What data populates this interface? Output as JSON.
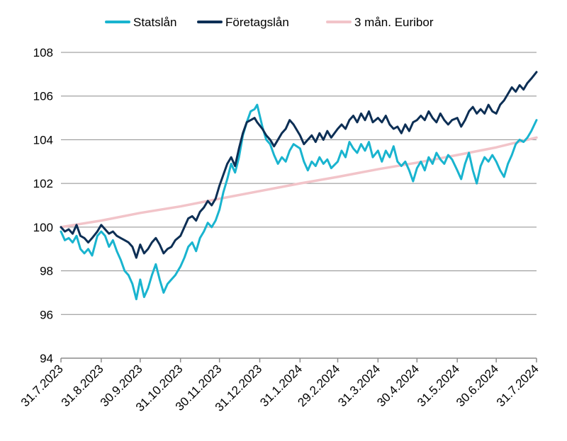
{
  "chart_data": {
    "type": "line",
    "xlabel": "",
    "ylabel": "",
    "ylim": [
      94,
      108
    ],
    "yticks": [
      "94",
      "96",
      "98",
      "100",
      "102",
      "104",
      "106",
      "108"
    ],
    "x_range": [
      "2023-07-31",
      "2024-07-31"
    ],
    "xticks": [
      {
        "date": "2023-07-31",
        "label": "31.7.2023"
      },
      {
        "date": "2023-08-31",
        "label": "31.8.2023"
      },
      {
        "date": "2023-09-30",
        "label": "30.9.2023"
      },
      {
        "date": "2023-10-31",
        "label": "31.10.2023"
      },
      {
        "date": "2023-11-30",
        "label": "30.11.2023"
      },
      {
        "date": "2023-12-31",
        "label": "31.12.2023"
      },
      {
        "date": "2024-01-31",
        "label": "31.1.2024"
      },
      {
        "date": "2024-02-29",
        "label": "29.2.2024"
      },
      {
        "date": "2024-03-31",
        "label": "31.3.2024"
      },
      {
        "date": "2024-04-30",
        "label": "30.4.2024"
      },
      {
        "date": "2024-05-31",
        "label": "31.5.2024"
      },
      {
        "date": "2024-06-30",
        "label": "30.6.2024"
      },
      {
        "date": "2024-07-31",
        "label": "31.7.2024"
      }
    ],
    "grid": true,
    "legend_position": "top-center",
    "series": [
      {
        "name": "Statslån",
        "color": "#19b4cf",
        "points": [
          [
            "2023-07-31",
            99.8
          ],
          [
            "2023-08-03",
            99.4
          ],
          [
            "2023-08-06",
            99.5
          ],
          [
            "2023-08-09",
            99.3
          ],
          [
            "2023-08-12",
            99.6
          ],
          [
            "2023-08-15",
            99.0
          ],
          [
            "2023-08-18",
            98.8
          ],
          [
            "2023-08-21",
            99.0
          ],
          [
            "2023-08-24",
            98.7
          ],
          [
            "2023-08-28",
            99.6
          ],
          [
            "2023-08-31",
            99.8
          ],
          [
            "2023-09-03",
            99.6
          ],
          [
            "2023-09-06",
            99.1
          ],
          [
            "2023-09-09",
            99.4
          ],
          [
            "2023-09-12",
            98.9
          ],
          [
            "2023-09-15",
            98.5
          ],
          [
            "2023-09-18",
            98.0
          ],
          [
            "2023-09-21",
            97.8
          ],
          [
            "2023-09-24",
            97.4
          ],
          [
            "2023-09-27",
            96.7
          ],
          [
            "2023-09-30",
            97.6
          ],
          [
            "2023-10-03",
            96.8
          ],
          [
            "2023-10-06",
            97.2
          ],
          [
            "2023-10-09",
            97.8
          ],
          [
            "2023-10-12",
            98.3
          ],
          [
            "2023-10-15",
            97.6
          ],
          [
            "2023-10-18",
            97.0
          ],
          [
            "2023-10-21",
            97.4
          ],
          [
            "2023-10-24",
            97.6
          ],
          [
            "2023-10-27",
            97.8
          ],
          [
            "2023-10-31",
            98.2
          ],
          [
            "2023-11-03",
            98.6
          ],
          [
            "2023-11-06",
            99.1
          ],
          [
            "2023-11-09",
            99.3
          ],
          [
            "2023-11-12",
            98.9
          ],
          [
            "2023-11-15",
            99.5
          ],
          [
            "2023-11-18",
            99.8
          ],
          [
            "2023-11-21",
            100.2
          ],
          [
            "2023-11-24",
            100.0
          ],
          [
            "2023-11-27",
            100.3
          ],
          [
            "2023-11-30",
            100.8
          ],
          [
            "2023-12-03",
            101.6
          ],
          [
            "2023-12-06",
            102.2
          ],
          [
            "2023-12-09",
            102.9
          ],
          [
            "2023-12-12",
            102.5
          ],
          [
            "2023-12-15",
            103.2
          ],
          [
            "2023-12-18",
            104.2
          ],
          [
            "2023-12-21",
            104.8
          ],
          [
            "2023-12-24",
            105.3
          ],
          [
            "2023-12-27",
            105.4
          ],
          [
            "2023-12-29",
            105.6
          ],
          [
            "2024-01-02",
            104.6
          ],
          [
            "2024-01-05",
            104.0
          ],
          [
            "2024-01-08",
            103.8
          ],
          [
            "2024-01-11",
            103.3
          ],
          [
            "2024-01-14",
            102.9
          ],
          [
            "2024-01-17",
            103.2
          ],
          [
            "2024-01-20",
            103.0
          ],
          [
            "2024-01-23",
            103.5
          ],
          [
            "2024-01-26",
            103.8
          ],
          [
            "2024-01-31",
            103.6
          ],
          [
            "2024-02-03",
            103.0
          ],
          [
            "2024-02-06",
            102.6
          ],
          [
            "2024-02-09",
            103.0
          ],
          [
            "2024-02-12",
            102.8
          ],
          [
            "2024-02-15",
            103.2
          ],
          [
            "2024-02-18",
            102.9
          ],
          [
            "2024-02-21",
            103.1
          ],
          [
            "2024-02-24",
            102.7
          ],
          [
            "2024-02-29",
            103.0
          ],
          [
            "2024-03-03",
            103.5
          ],
          [
            "2024-03-06",
            103.2
          ],
          [
            "2024-03-09",
            103.9
          ],
          [
            "2024-03-12",
            103.6
          ],
          [
            "2024-03-15",
            103.4
          ],
          [
            "2024-03-18",
            103.8
          ],
          [
            "2024-03-21",
            103.5
          ],
          [
            "2024-03-24",
            103.9
          ],
          [
            "2024-03-27",
            103.2
          ],
          [
            "2024-03-31",
            103.5
          ],
          [
            "2024-04-03",
            103.0
          ],
          [
            "2024-04-06",
            103.5
          ],
          [
            "2024-04-09",
            103.2
          ],
          [
            "2024-04-12",
            103.7
          ],
          [
            "2024-04-15",
            103.0
          ],
          [
            "2024-04-18",
            102.8
          ],
          [
            "2024-04-21",
            103.0
          ],
          [
            "2024-04-24",
            102.6
          ],
          [
            "2024-04-27",
            102.1
          ],
          [
            "2024-04-30",
            102.7
          ],
          [
            "2024-05-03",
            103.0
          ],
          [
            "2024-05-06",
            102.6
          ],
          [
            "2024-05-09",
            103.2
          ],
          [
            "2024-05-12",
            102.9
          ],
          [
            "2024-05-15",
            103.4
          ],
          [
            "2024-05-18",
            103.1
          ],
          [
            "2024-05-21",
            102.9
          ],
          [
            "2024-05-24",
            103.3
          ],
          [
            "2024-05-27",
            103.1
          ],
          [
            "2024-05-31",
            102.6
          ],
          [
            "2024-06-03",
            102.2
          ],
          [
            "2024-06-06",
            102.9
          ],
          [
            "2024-06-09",
            103.4
          ],
          [
            "2024-06-12",
            102.6
          ],
          [
            "2024-06-15",
            102.0
          ],
          [
            "2024-06-18",
            102.8
          ],
          [
            "2024-06-21",
            103.2
          ],
          [
            "2024-06-24",
            103.0
          ],
          [
            "2024-06-27",
            103.3
          ],
          [
            "2024-06-30",
            103.0
          ],
          [
            "2024-07-03",
            102.6
          ],
          [
            "2024-07-06",
            102.3
          ],
          [
            "2024-07-09",
            102.9
          ],
          [
            "2024-07-12",
            103.3
          ],
          [
            "2024-07-15",
            103.8
          ],
          [
            "2024-07-18",
            104.0
          ],
          [
            "2024-07-21",
            103.9
          ],
          [
            "2024-07-24",
            104.1
          ],
          [
            "2024-07-27",
            104.4
          ],
          [
            "2024-07-31",
            104.9
          ]
        ]
      },
      {
        "name": "Företagslån",
        "color": "#0d2f55",
        "points": [
          [
            "2023-07-31",
            100.0
          ],
          [
            "2023-08-03",
            99.8
          ],
          [
            "2023-08-06",
            99.9
          ],
          [
            "2023-08-09",
            99.7
          ],
          [
            "2023-08-12",
            100.1
          ],
          [
            "2023-08-15",
            99.6
          ],
          [
            "2023-08-18",
            99.5
          ],
          [
            "2023-08-21",
            99.3
          ],
          [
            "2023-08-24",
            99.5
          ],
          [
            "2023-08-28",
            99.8
          ],
          [
            "2023-08-31",
            100.1
          ],
          [
            "2023-09-03",
            99.9
          ],
          [
            "2023-09-06",
            99.7
          ],
          [
            "2023-09-09",
            99.8
          ],
          [
            "2023-09-12",
            99.6
          ],
          [
            "2023-09-15",
            99.5
          ],
          [
            "2023-09-18",
            99.4
          ],
          [
            "2023-09-21",
            99.3
          ],
          [
            "2023-09-24",
            99.1
          ],
          [
            "2023-09-27",
            98.6
          ],
          [
            "2023-09-30",
            99.2
          ],
          [
            "2023-10-03",
            98.8
          ],
          [
            "2023-10-06",
            99.0
          ],
          [
            "2023-10-09",
            99.3
          ],
          [
            "2023-10-12",
            99.5
          ],
          [
            "2023-10-15",
            99.2
          ],
          [
            "2023-10-18",
            98.8
          ],
          [
            "2023-10-21",
            99.0
          ],
          [
            "2023-10-24",
            99.1
          ],
          [
            "2023-10-27",
            99.4
          ],
          [
            "2023-10-31",
            99.6
          ],
          [
            "2023-11-03",
            100.0
          ],
          [
            "2023-11-06",
            100.4
          ],
          [
            "2023-11-09",
            100.5
          ],
          [
            "2023-11-12",
            100.3
          ],
          [
            "2023-11-15",
            100.7
          ],
          [
            "2023-11-18",
            100.9
          ],
          [
            "2023-11-21",
            101.2
          ],
          [
            "2023-11-24",
            101.0
          ],
          [
            "2023-11-27",
            101.3
          ],
          [
            "2023-11-30",
            101.9
          ],
          [
            "2023-12-03",
            102.4
          ],
          [
            "2023-12-06",
            102.9
          ],
          [
            "2023-12-09",
            103.2
          ],
          [
            "2023-12-12",
            102.8
          ],
          [
            "2023-12-15",
            103.6
          ],
          [
            "2023-12-18",
            104.3
          ],
          [
            "2023-12-21",
            104.8
          ],
          [
            "2023-12-24",
            104.9
          ],
          [
            "2023-12-27",
            105.0
          ],
          [
            "2023-12-29",
            104.8
          ],
          [
            "2024-01-02",
            104.5
          ],
          [
            "2024-01-05",
            104.2
          ],
          [
            "2024-01-08",
            104.0
          ],
          [
            "2024-01-11",
            103.7
          ],
          [
            "2024-01-14",
            104.0
          ],
          [
            "2024-01-17",
            104.3
          ],
          [
            "2024-01-20",
            104.5
          ],
          [
            "2024-01-23",
            104.9
          ],
          [
            "2024-01-26",
            104.7
          ],
          [
            "2024-01-31",
            104.2
          ],
          [
            "2024-02-03",
            103.8
          ],
          [
            "2024-02-06",
            104.0
          ],
          [
            "2024-02-09",
            104.2
          ],
          [
            "2024-02-12",
            103.9
          ],
          [
            "2024-02-15",
            104.3
          ],
          [
            "2024-02-18",
            104.0
          ],
          [
            "2024-02-21",
            104.4
          ],
          [
            "2024-02-24",
            104.1
          ],
          [
            "2024-02-29",
            104.5
          ],
          [
            "2024-03-03",
            104.7
          ],
          [
            "2024-03-06",
            104.5
          ],
          [
            "2024-03-09",
            104.9
          ],
          [
            "2024-03-12",
            105.1
          ],
          [
            "2024-03-15",
            104.8
          ],
          [
            "2024-03-18",
            105.2
          ],
          [
            "2024-03-21",
            104.9
          ],
          [
            "2024-03-24",
            105.3
          ],
          [
            "2024-03-27",
            104.8
          ],
          [
            "2024-03-31",
            105.0
          ],
          [
            "2024-04-03",
            104.8
          ],
          [
            "2024-04-06",
            105.1
          ],
          [
            "2024-04-09",
            104.7
          ],
          [
            "2024-04-12",
            104.5
          ],
          [
            "2024-04-15",
            104.6
          ],
          [
            "2024-04-18",
            104.3
          ],
          [
            "2024-04-21",
            104.7
          ],
          [
            "2024-04-24",
            104.4
          ],
          [
            "2024-04-27",
            104.8
          ],
          [
            "2024-04-30",
            104.9
          ],
          [
            "2024-05-03",
            105.1
          ],
          [
            "2024-05-06",
            104.9
          ],
          [
            "2024-05-09",
            105.3
          ],
          [
            "2024-05-12",
            105.0
          ],
          [
            "2024-05-15",
            104.8
          ],
          [
            "2024-05-18",
            105.2
          ],
          [
            "2024-05-21",
            104.9
          ],
          [
            "2024-05-24",
            104.7
          ],
          [
            "2024-05-27",
            104.9
          ],
          [
            "2024-05-31",
            105.0
          ],
          [
            "2024-06-03",
            104.6
          ],
          [
            "2024-06-06",
            104.9
          ],
          [
            "2024-06-09",
            105.3
          ],
          [
            "2024-06-12",
            105.5
          ],
          [
            "2024-06-15",
            105.2
          ],
          [
            "2024-06-18",
            105.4
          ],
          [
            "2024-06-21",
            105.2
          ],
          [
            "2024-06-24",
            105.6
          ],
          [
            "2024-06-27",
            105.3
          ],
          [
            "2024-06-30",
            105.2
          ],
          [
            "2024-07-03",
            105.6
          ],
          [
            "2024-07-06",
            105.8
          ],
          [
            "2024-07-09",
            106.1
          ],
          [
            "2024-07-12",
            106.4
          ],
          [
            "2024-07-15",
            106.2
          ],
          [
            "2024-07-18",
            106.5
          ],
          [
            "2024-07-21",
            106.3
          ],
          [
            "2024-07-24",
            106.6
          ],
          [
            "2024-07-27",
            106.8
          ],
          [
            "2024-07-31",
            107.1
          ]
        ]
      },
      {
        "name": "3 mån. Euribor",
        "color": "#f2c4c9",
        "points": [
          [
            "2023-07-31",
            100.0
          ],
          [
            "2023-08-31",
            100.3
          ],
          [
            "2023-09-30",
            100.65
          ],
          [
            "2023-10-31",
            100.95
          ],
          [
            "2023-11-30",
            101.3
          ],
          [
            "2023-12-31",
            101.65
          ],
          [
            "2024-01-31",
            102.0
          ],
          [
            "2024-02-29",
            102.3
          ],
          [
            "2024-03-31",
            102.65
          ],
          [
            "2024-04-30",
            102.95
          ],
          [
            "2024-05-31",
            103.3
          ],
          [
            "2024-06-30",
            103.65
          ],
          [
            "2024-07-31",
            104.1
          ]
        ]
      }
    ]
  }
}
